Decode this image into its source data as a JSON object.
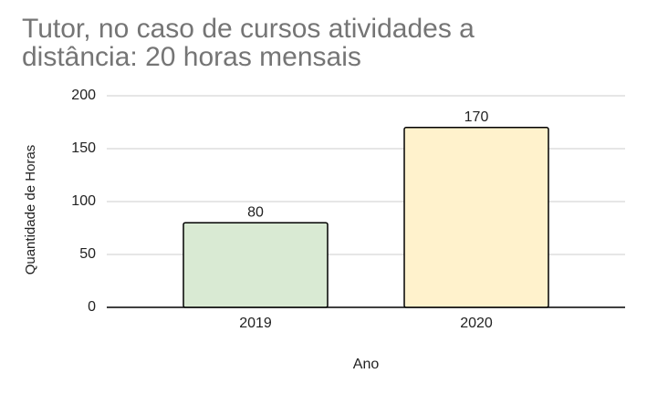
{
  "chart_data": {
    "type": "bar",
    "title": "Tutor, no caso de cursos atividades a distância: 20 horas mensais",
    "x_label": "Ano",
    "y_label": "Quantidade de Horas",
    "categories": [
      "2019",
      "2020"
    ],
    "values": [
      80,
      170
    ],
    "colors": [
      "#d9ead3",
      "#fff2cc"
    ],
    "ylim": [
      0,
      200
    ],
    "yticks": [
      0,
      50,
      100,
      150,
      200
    ],
    "grid": true
  }
}
